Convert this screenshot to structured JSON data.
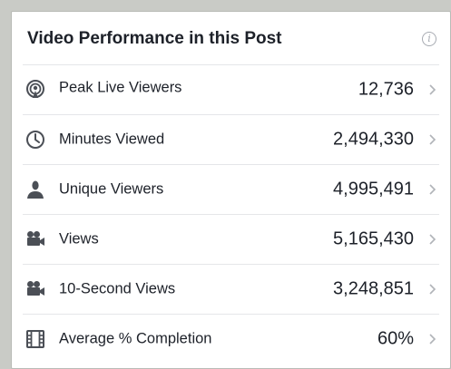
{
  "panel": {
    "title": "Video Performance in this Post",
    "info_icon": "info-icon",
    "info_glyph": "i"
  },
  "metrics": [
    {
      "icon": "live-broadcast-icon",
      "label": "Peak Live Viewers",
      "value": "12,736"
    },
    {
      "icon": "clock-icon",
      "label": "Minutes Viewed",
      "value": "2,494,330"
    },
    {
      "icon": "person-icon",
      "label": "Unique Viewers",
      "value": "4,995,491"
    },
    {
      "icon": "video-camera-icon",
      "label": "Views",
      "value": "5,165,430"
    },
    {
      "icon": "video-camera-icon",
      "label": "10-Second Views",
      "value": "3,248,851"
    },
    {
      "icon": "film-strip-icon",
      "label": "Average % Completion",
      "value": "60%"
    }
  ],
  "colors": {
    "text": "#1d2129",
    "icon": "#4b4f56",
    "chevron": "#b0b3b8",
    "divider": "#e5e6e9"
  }
}
